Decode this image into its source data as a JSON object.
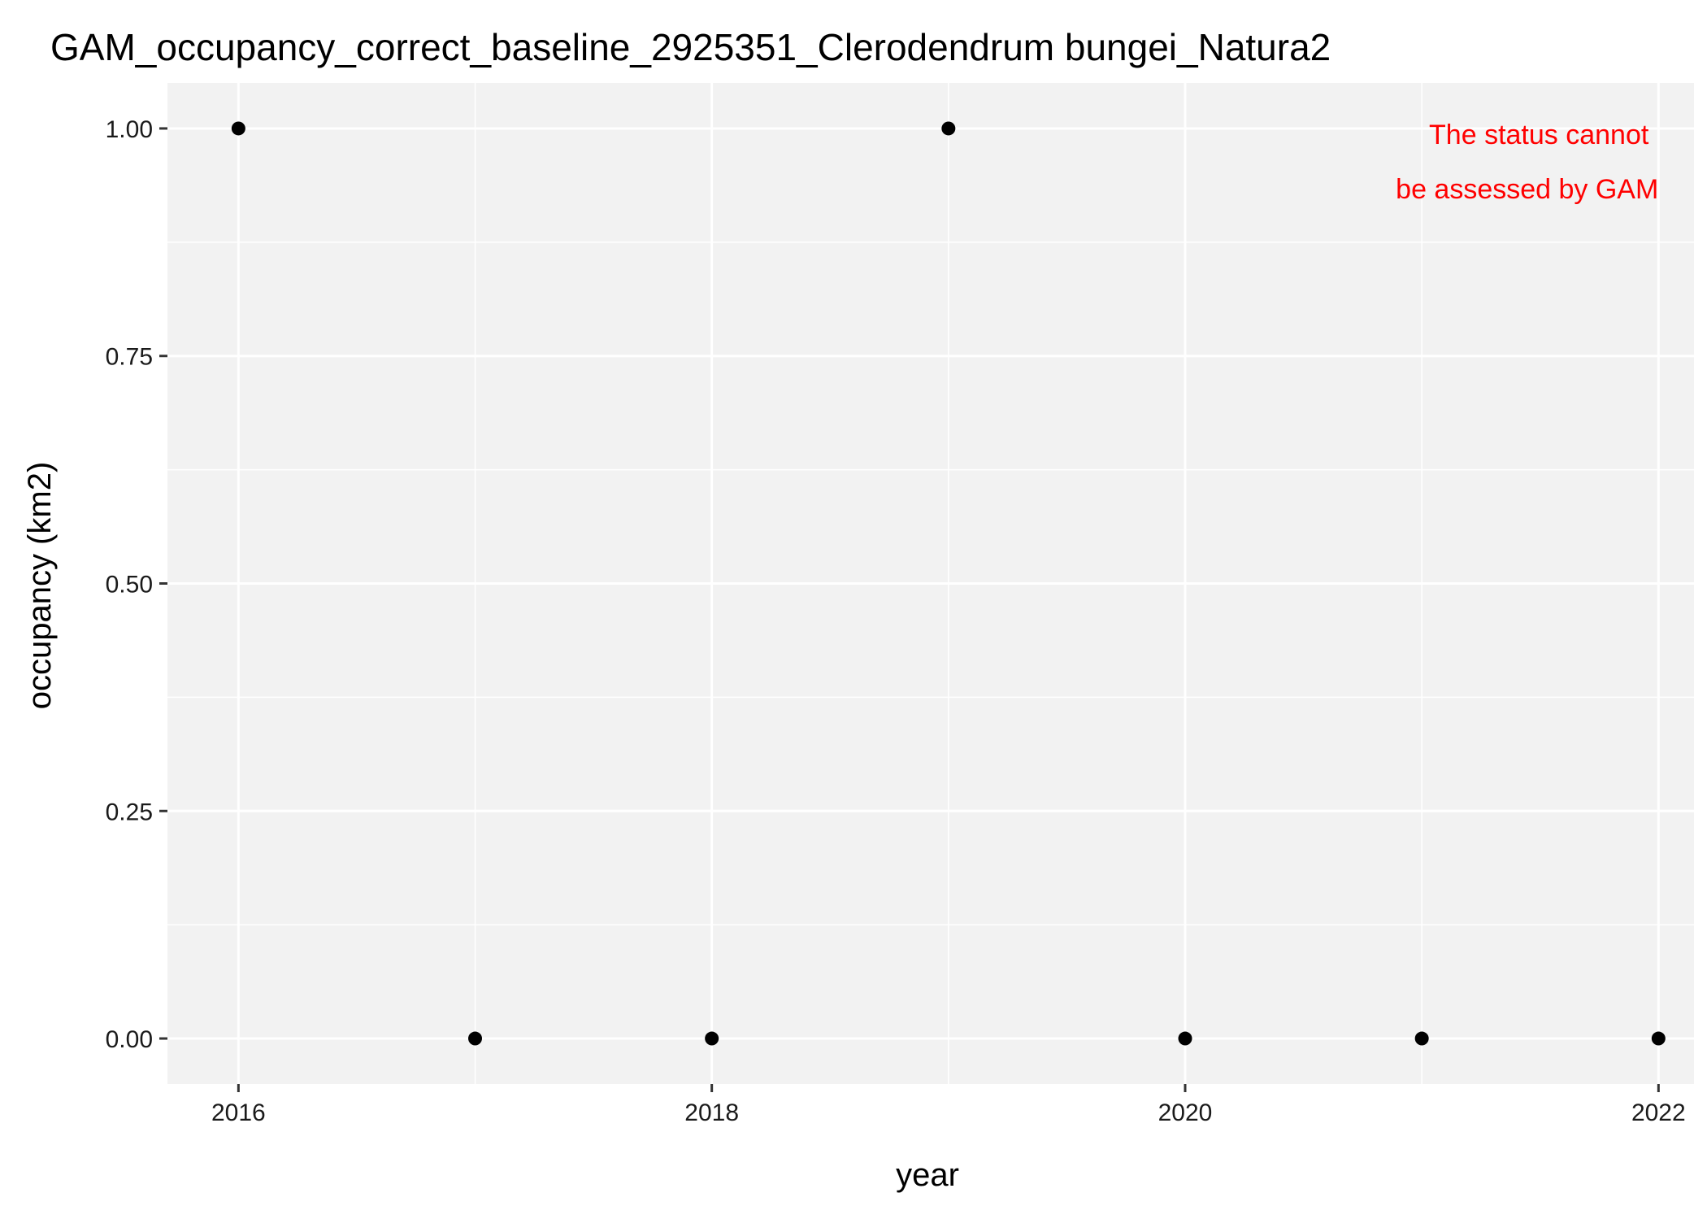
{
  "chart_data": {
    "type": "scatter",
    "title": "GAM_occupancy_correct_baseline_2925351_Clerodendrum bungei_Natura2",
    "xlabel": "year",
    "ylabel": "occupancy (km2)",
    "x": [
      2016,
      2017,
      2018,
      2019,
      2020,
      2021,
      2022
    ],
    "y": [
      1,
      0,
      0,
      1,
      0,
      0,
      0
    ],
    "xlim": [
      2015.7,
      2022.15
    ],
    "ylim": [
      -0.05,
      1.05
    ],
    "x_ticks": [
      2016,
      2018,
      2020,
      2022
    ],
    "x_tick_labels": [
      "2016",
      "2018",
      "2020",
      "2022"
    ],
    "y_ticks": [
      0,
      0.25,
      0.5,
      0.75,
      1
    ],
    "y_tick_labels": [
      "0.00",
      "0.25",
      "0.50",
      "0.75",
      "1.00"
    ],
    "grid": true,
    "annotation": {
      "lines": [
        "The status cannot",
        "be assessed by GAM"
      ],
      "color": "#ff0000",
      "position": "top-right"
    },
    "colors": {
      "panel_background": "#f2f2f2",
      "grid_line": "#ffffff",
      "point": "#000000"
    }
  }
}
